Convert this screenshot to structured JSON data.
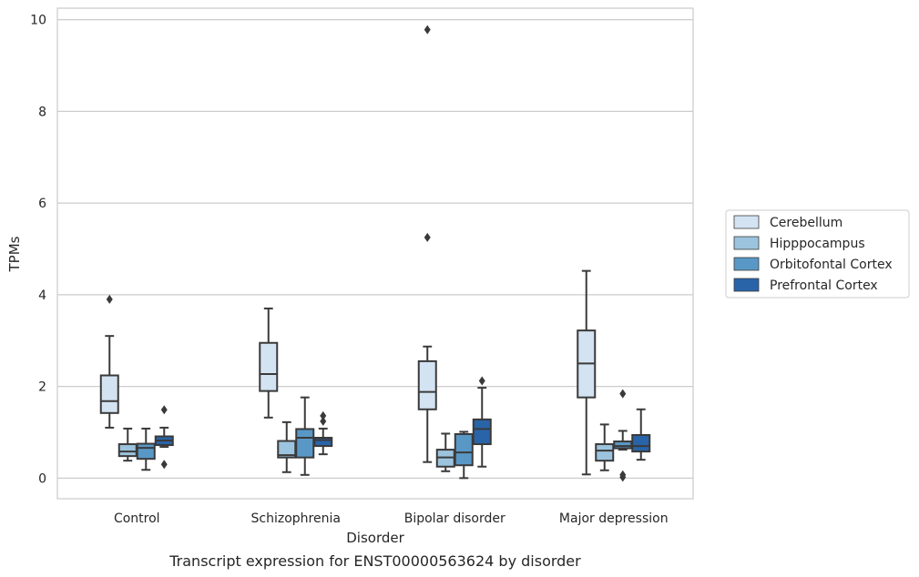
{
  "chart_data": {
    "type": "box",
    "caption": "Transcript expression for ENST00000563624 by disorder",
    "xlabel": "Disorder",
    "ylabel": "TPMs",
    "ylim": [
      -0.45,
      10.25
    ],
    "yticks": [
      0,
      2,
      4,
      6,
      8,
      10
    ],
    "grid": true,
    "legend_position": "right",
    "categories": [
      "Control",
      "Schizophrenia",
      "Bipolar disorder",
      "Major depression"
    ],
    "series": [
      {
        "name": "Cerebellum",
        "color": "#d4e3f2",
        "boxes": [
          {
            "whislo": 1.1,
            "q1": 1.42,
            "med": 1.68,
            "q3": 2.24,
            "whishi": 3.1,
            "fliers": [
              3.9
            ]
          },
          {
            "whislo": 1.32,
            "q1": 1.9,
            "med": 2.27,
            "q3": 2.95,
            "whishi": 3.7,
            "fliers": []
          },
          {
            "whislo": 0.35,
            "q1": 1.5,
            "med": 1.88,
            "q3": 2.55,
            "whishi": 2.87,
            "fliers": [
              5.25,
              9.78
            ]
          },
          {
            "whislo": 0.08,
            "q1": 1.76,
            "med": 2.5,
            "q3": 3.22,
            "whishi": 4.52,
            "fliers": []
          }
        ]
      },
      {
        "name": "Hipppocampus",
        "color": "#9dc4de",
        "boxes": [
          {
            "whislo": 0.38,
            "q1": 0.48,
            "med": 0.58,
            "q3": 0.74,
            "whishi": 1.08,
            "fliers": []
          },
          {
            "whislo": 0.13,
            "q1": 0.45,
            "med": 0.5,
            "q3": 0.81,
            "whishi": 1.22,
            "fliers": []
          },
          {
            "whislo": 0.15,
            "q1": 0.25,
            "med": 0.45,
            "q3": 0.62,
            "whishi": 0.97,
            "fliers": []
          },
          {
            "whislo": 0.17,
            "q1": 0.38,
            "med": 0.6,
            "q3": 0.74,
            "whishi": 1.17,
            "fliers": []
          }
        ]
      },
      {
        "name": "Orbitofontal Cortex",
        "color": "#5998c6",
        "boxes": [
          {
            "whislo": 0.18,
            "q1": 0.42,
            "med": 0.66,
            "q3": 0.75,
            "whishi": 1.08,
            "fliers": []
          },
          {
            "whislo": 0.07,
            "q1": 0.45,
            "med": 0.88,
            "q3": 1.07,
            "whishi": 1.76,
            "fliers": []
          },
          {
            "whislo": 0.0,
            "q1": 0.28,
            "med": 0.56,
            "q3": 0.96,
            "whishi": 1.01,
            "fliers": []
          },
          {
            "whislo": 0.62,
            "q1": 0.65,
            "med": 0.7,
            "q3": 0.8,
            "whishi": 1.03,
            "fliers": [
              0.02,
              0.07,
              1.84
            ]
          }
        ]
      },
      {
        "name": "Prefrontal Cortex",
        "color": "#2964a9",
        "boxes": [
          {
            "whislo": 0.68,
            "q1": 0.72,
            "med": 0.82,
            "q3": 0.91,
            "whishi": 1.1,
            "fliers": [
              0.3,
              1.49
            ]
          },
          {
            "whislo": 0.52,
            "q1": 0.7,
            "med": 0.83,
            "q3": 0.88,
            "whishi": 1.08,
            "fliers": [
              1.24,
              1.36
            ]
          },
          {
            "whislo": 0.25,
            "q1": 0.74,
            "med": 1.07,
            "q3": 1.28,
            "whishi": 1.97,
            "fliers": [
              2.12
            ]
          },
          {
            "whislo": 0.4,
            "q1": 0.58,
            "med": 0.7,
            "q3": 0.94,
            "whishi": 1.5,
            "fliers": []
          }
        ]
      }
    ]
  }
}
